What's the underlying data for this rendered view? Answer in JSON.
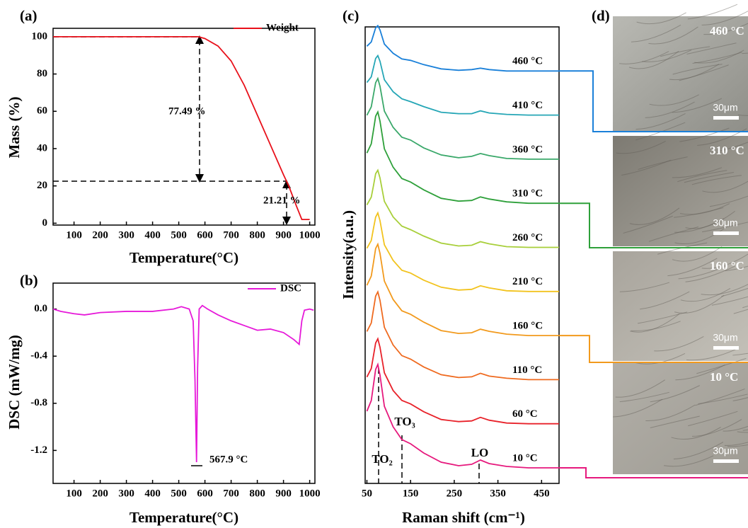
{
  "panel_labels": [
    "(a)",
    "(b)",
    "(c)",
    "(d)"
  ],
  "chart_data": [
    {
      "type": "line",
      "x_label": "Temperature(°C)",
      "y_label": "Mass (%)",
      "x": [
        20,
        100,
        200,
        300,
        400,
        500,
        575,
        600,
        650,
        700,
        750,
        800,
        850,
        900,
        920,
        950,
        970,
        1000
      ],
      "series": [
        {
          "name": "Weight",
          "color": "#e8101a",
          "values": [
            100,
            100,
            100,
            100,
            100,
            100,
            100,
            99,
            95,
            87,
            74,
            58,
            42,
            26,
            20,
            9,
            2,
            2
          ]
        }
      ],
      "xlim": [
        20,
        1020
      ],
      "xticks": [
        100,
        200,
        300,
        400,
        500,
        600,
        700,
        800,
        900,
        1000
      ],
      "ylim": [
        -1,
        104.5
      ],
      "yticks": [
        0,
        20,
        40,
        60,
        80,
        100
      ],
      "annotations": [
        "77.49 %",
        "21.21 %"
      ]
    },
    {
      "type": "line",
      "x_label": "Temperature(°C)",
      "y_label": "DSC (mW/mg)",
      "x": [
        20,
        50,
        100,
        140,
        200,
        300,
        400,
        480,
        510,
        540,
        555,
        562,
        567.9,
        572,
        578,
        590,
        610,
        650,
        700,
        750,
        800,
        850,
        900,
        940,
        960,
        970,
        980,
        1000,
        1015
      ],
      "series": [
        {
          "name": "DSC",
          "color": "#e619d9",
          "values": [
            0,
            -0.02,
            -0.04,
            -0.05,
            -0.03,
            -0.02,
            -0.02,
            0,
            0.02,
            0,
            -0.1,
            -0.6,
            -1.3,
            -0.5,
            0,
            0.03,
            0,
            -0.05,
            -0.1,
            -0.14,
            -0.18,
            -0.17,
            -0.2,
            -0.26,
            -0.3,
            -0.1,
            -0.01,
            0,
            -0.01
          ]
        }
      ],
      "xlim": [
        20,
        1020
      ],
      "xticks": [
        100,
        200,
        300,
        400,
        500,
        600,
        700,
        800,
        900,
        1000
      ],
      "ylim": [
        -1.48,
        0.22
      ],
      "yticks": [
        {
          "value": 0,
          "label": "0.0"
        },
        -0.4,
        -0.8,
        -1.2
      ],
      "annotations": [
        "567.9 °C"
      ]
    },
    {
      "type": "raman",
      "x_label": "Raman shift (cm⁻¹)",
      "y_label": "Intensity(a.u.)",
      "x": [
        50,
        60,
        65,
        70,
        75,
        80,
        90,
        110,
        130,
        150,
        180,
        220,
        260,
        290,
        310,
        330,
        370,
        420,
        490
      ],
      "series": [
        {
          "name": "10 °C",
          "color": "#e6197d",
          "values": [
            81,
            96,
            118,
            140,
            147,
            132,
            88,
            59,
            41,
            35,
            22,
            9,
            4,
            6,
            12,
            7,
            3,
            1,
            1
          ]
        },
        {
          "name": "60 °C",
          "color": "#e8222a",
          "values": [
            67,
            79,
            97,
            115,
            121,
            109,
            73,
            48,
            34,
            29,
            18,
            7,
            4,
            5,
            10,
            6,
            2,
            1,
            1
          ]
        },
        {
          "name": "110 °C",
          "color": "#ef6a1f",
          "values": [
            69,
            81,
            100,
            119,
            125,
            113,
            75,
            50,
            35,
            30,
            19,
            8,
            4,
            5,
            10,
            6,
            3,
            1,
            1
          ]
        },
        {
          "name": "160 °C",
          "color": "#f29a1d",
          "values": [
            72,
            85,
            104,
            124,
            130,
            117,
            78,
            52,
            36,
            31,
            20,
            8,
            4,
            5,
            10,
            7,
            3,
            1,
            1
          ]
        },
        {
          "name": "210 °C",
          "color": "#f2c31e",
          "values": [
            62,
            73,
            90,
            106,
            112,
            101,
            67,
            45,
            31,
            27,
            17,
            7,
            3,
            4,
            9,
            6,
            2,
            1,
            1
          ]
        },
        {
          "name": "260 °C",
          "color": "#a8cf3a",
          "values": [
            61,
            72,
            88,
            105,
            110,
            99,
            66,
            44,
            31,
            26,
            17,
            7,
            3,
            4,
            9,
            6,
            2,
            1,
            1
          ]
        },
        {
          "name": "310 °C",
          "color": "#2ea03a",
          "values": [
            72,
            85,
            104,
            124,
            130,
            117,
            78,
            52,
            36,
            31,
            20,
            8,
            4,
            5,
            10,
            7,
            3,
            1,
            1
          ]
        },
        {
          "name": "360 °C",
          "color": "#3aa86a",
          "values": [
            63,
            75,
            92,
            109,
            115,
            104,
            69,
            46,
            32,
            28,
            17,
            7,
            3,
            5,
            9,
            6,
            2,
            1,
            1
          ]
        },
        {
          "name": "410 °C",
          "color": "#25a6b6",
          "values": [
            47,
            55,
            68,
            81,
            85,
            77,
            51,
            34,
            24,
            20,
            13,
            5,
            3,
            3,
            7,
            4,
            2,
            1,
            1
          ]
        },
        {
          "name": "460 °C",
          "color": "#1a80d9",
          "values": [
            36,
            42,
            52,
            62,
            65,
            59,
            39,
            26,
            18,
            16,
            10,
            4,
            2,
            3,
            5,
            3,
            1,
            1,
            1
          ]
        }
      ],
      "xlim": [
        46,
        490
      ],
      "xticks": [
        50,
        150,
        250,
        350,
        450
      ],
      "annotations": [
        "TO₂",
        "TO₃",
        "LO"
      ]
    }
  ],
  "micrographs": [
    {
      "label": "460 °C",
      "scale_bar": "30μm"
    },
    {
      "label": "310 °C",
      "scale_bar": "30μm"
    },
    {
      "label": "160 °C",
      "scale_bar": "30μm"
    },
    {
      "label": "10 °C",
      "scale_bar": "30μm"
    }
  ]
}
